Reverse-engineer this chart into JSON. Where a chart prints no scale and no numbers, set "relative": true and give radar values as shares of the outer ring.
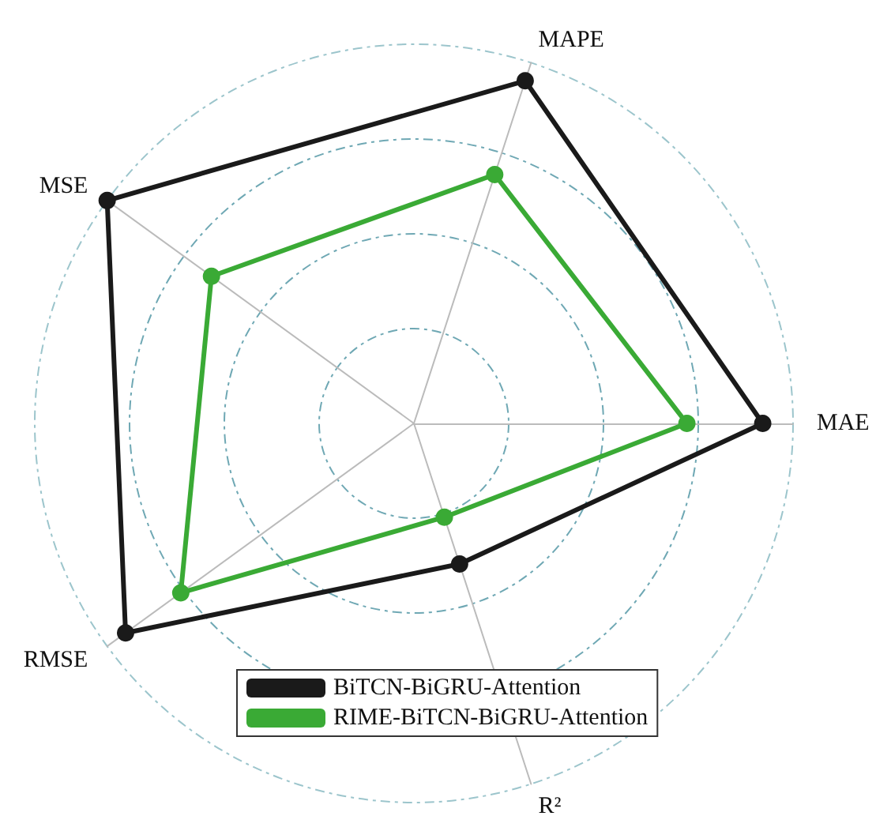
{
  "chart_data": {
    "type": "radar",
    "relative": true,
    "categories": [
      "MAPE",
      "MAE",
      "R²",
      "RMSE",
      "MSE"
    ],
    "series": [
      {
        "name": "BiTCN-BiGRU-Attention",
        "color": "#1a1a1a",
        "values": [
          0.95,
          0.92,
          0.39,
          0.94,
          1.0
        ]
      },
      {
        "name": "RIME-BiTCN-BiGRU-Attention",
        "color": "#3aaa35",
        "values": [
          0.69,
          0.72,
          0.26,
          0.76,
          0.66
        ]
      }
    ],
    "marker": "circle",
    "legend": "bottom"
  }
}
